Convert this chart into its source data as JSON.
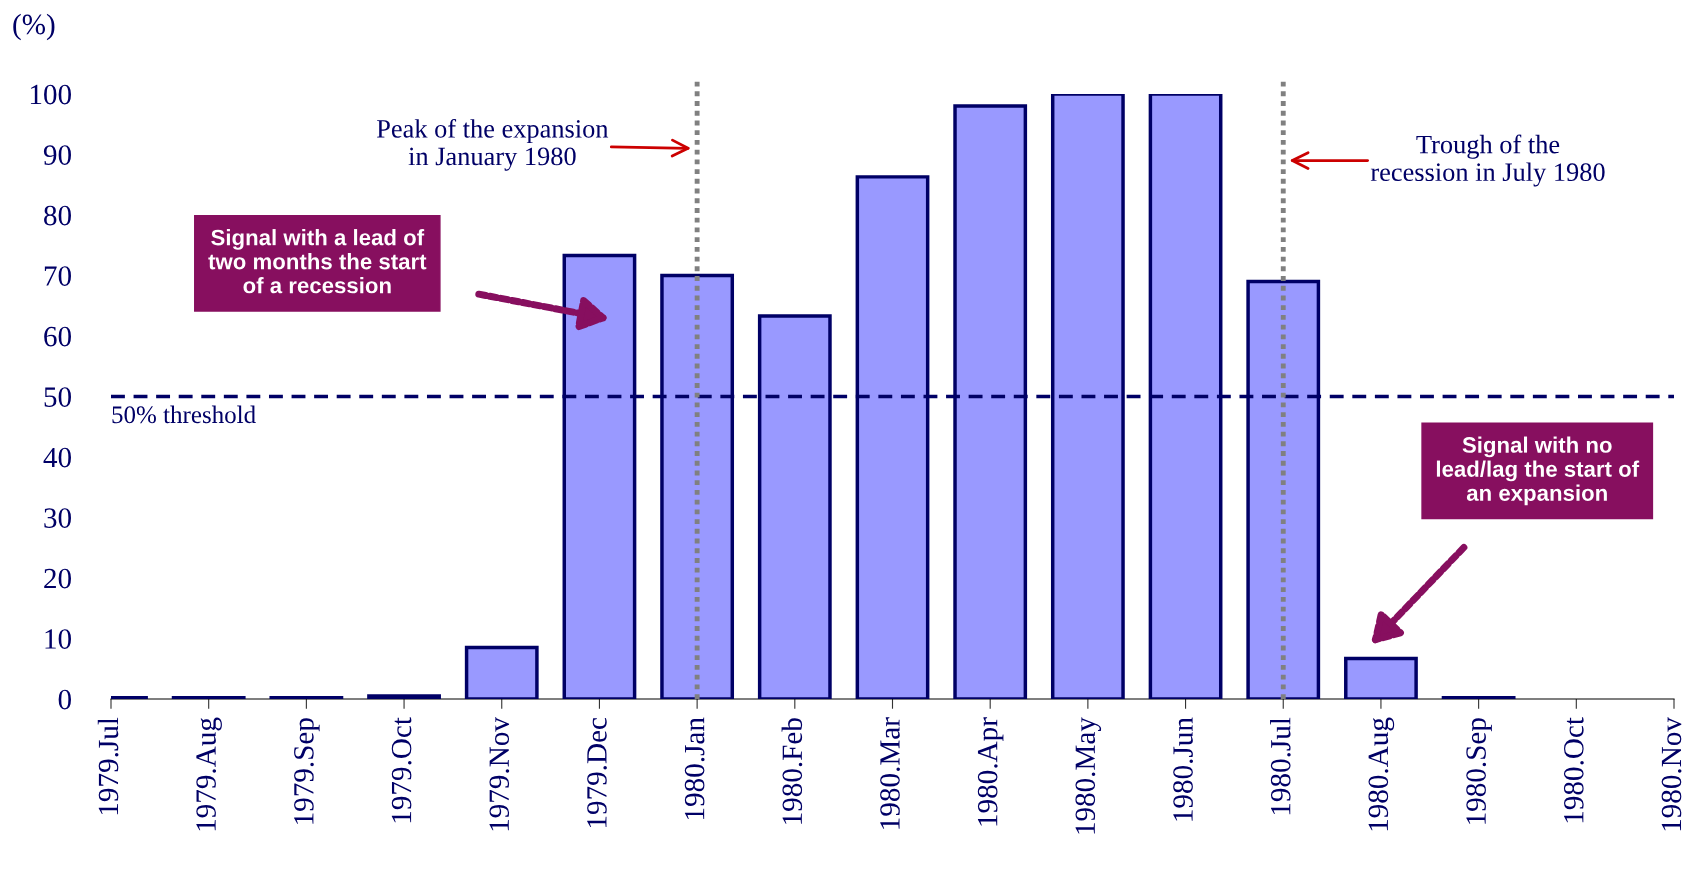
{
  "chart_data": {
    "type": "bar",
    "ylabel": "(%)",
    "categories": [
      "1979.Jul",
      "1979.Aug",
      "1979.Sep",
      "1979.Oct",
      "1979.Nov",
      "1979.Dec",
      "1980.Jan",
      "1980.Feb",
      "1980.Mar",
      "1980.Apr",
      "1980.May",
      "1980.Jun",
      "1980.Jul",
      "1980.Aug",
      "1980.Sep",
      "1980.Oct",
      "1980.Nov"
    ],
    "values": [
      0.2,
      0.2,
      0.2,
      0.5,
      8.5,
      73.3,
      70,
      63.3,
      86.3,
      98,
      100,
      100,
      69,
      6.7,
      0.2,
      null,
      null
    ],
    "color": "#9999ff",
    "ylim": [
      0,
      100
    ],
    "yticks": [
      0,
      10,
      20,
      30,
      40,
      50,
      60,
      70,
      80,
      90,
      100
    ],
    "grid": false,
    "legend": false,
    "ref_lines": [
      {
        "axis": "y",
        "value": 50,
        "label": "50% threshold",
        "color": "#000066",
        "line_style": "dashed"
      },
      {
        "axis": "x",
        "value": "1980.Jan",
        "color": "#808080",
        "line_style": "dotted"
      },
      {
        "axis": "x",
        "value": "1980.Jul",
        "color": "#808080",
        "line_style": "dotted"
      }
    ],
    "annotations": [
      "Peak of the expansion\nin January 1980",
      "Trough of the\nrecession in July 1980",
      "Signal with a lead of\ntwo months the start\nof a recession",
      "Signal with no\nlead/lag the start of\nan expansion"
    ]
  }
}
